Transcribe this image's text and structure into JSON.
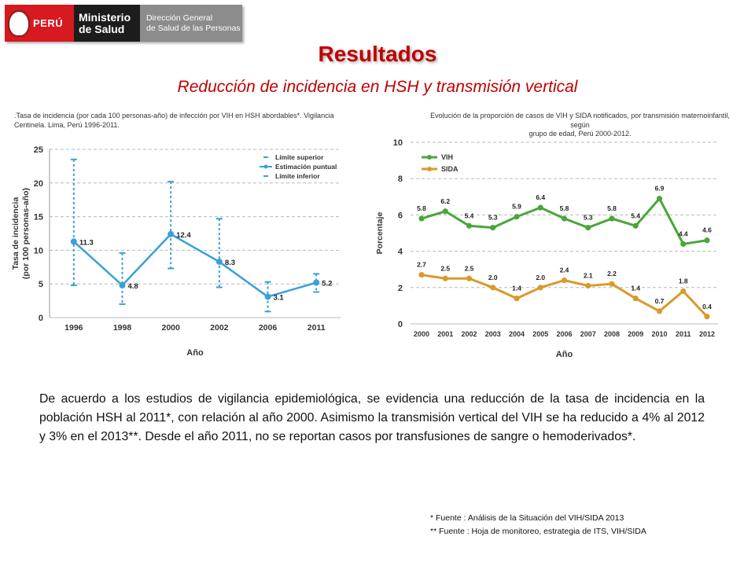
{
  "header": {
    "logo_country": "PERÚ",
    "logo_ministry_1": "Ministerio",
    "logo_ministry_2": "de Salud",
    "logo_dir_1": "Dirección General",
    "logo_dir_2": "de Salud de las Personas"
  },
  "slide": {
    "title": "Resultados",
    "subtitle": "Reducción de incidencia en HSH y transmisión vertical",
    "paragraph": "De acuerdo a los estudios de vigilancia epidemiológica, se evidencia una reducción de la tasa de incidencia en la población HSH al 2011*, con relación al año 2000. Asimismo la transmisión vertical del VIH se ha reducido a 4% al 2012 y 3% en el 2013**. Desde el año 2011, no se reportan casos por transfusiones de sangre o hemoderivados*.",
    "footnote_1": "*   Fuente : Análisis de la Situación del VIH/SIDA 2013",
    "footnote_2": "** Fuente : Hoja de monitoreo, estrategia de ITS, VIH/SIDA"
  },
  "chart_data": [
    {
      "type": "line",
      "title_line1": ".Tasa de incidencia (por cada 100 personas-año) de infección por VIH en HSH abordables*. Vigilancia",
      "title_line2": "Centinela. Lima, Perú 1996-2011.",
      "xlabel": "Año",
      "ylabel_line1": "Tasa de incidencia",
      "ylabel_line2": "(por 100 personas-año)",
      "categories": [
        "1996",
        "1998",
        "2000",
        "2002",
        "2006",
        "2011"
      ],
      "ylim": [
        0,
        25
      ],
      "yticks": [
        0,
        5,
        10,
        15,
        20,
        25
      ],
      "grid": true,
      "legend_position": "top-right",
      "legend": [
        "Límite superior",
        "Estimación puntual",
        "Límite inferior"
      ],
      "series": [
        {
          "name": "Estimación puntual",
          "values": [
            11.3,
            4.8,
            12.4,
            8.3,
            3.1,
            5.2
          ],
          "labels": [
            "11.3",
            "4.8",
            "12.4",
            "8.3",
            "3.1",
            "5.2"
          ]
        },
        {
          "name": "Límite superior",
          "values": [
            23.5,
            9.6,
            20.2,
            14.7,
            5.3,
            6.5
          ]
        },
        {
          "name": "Límite inferior",
          "values": [
            4.8,
            2.0,
            7.3,
            4.5,
            0.9,
            3.8
          ]
        }
      ],
      "color": "#3aa0d8"
    },
    {
      "type": "line",
      "title_line1": "Evolución de la proporción de casos de VIH y SIDA notificados, por transmisión maternoinfantil, según",
      "title_line2": "grupo de edad, Perú 2000-2012.",
      "xlabel": "Año",
      "ylabel": "Porcentaje",
      "categories": [
        "2000",
        "2001",
        "2002",
        "2003",
        "2004",
        "2005",
        "2006",
        "2007",
        "2008",
        "2009",
        "2010",
        "2011",
        "2012"
      ],
      "ylim": [
        0,
        10
      ],
      "yticks": [
        0,
        2,
        4,
        6,
        8,
        10
      ],
      "grid": true,
      "legend_position": "top-left",
      "series": [
        {
          "name": "VIH",
          "values": [
            5.8,
            6.2,
            5.4,
            5.3,
            5.9,
            6.4,
            5.8,
            5.3,
            5.8,
            5.4,
            6.9,
            4.4,
            4.6
          ],
          "labels": [
            "5.8",
            "6.2",
            "5.4",
            "5.3",
            "5.9",
            "6.4",
            "5.8",
            "5.3",
            "5.8",
            "5.4",
            "6.9",
            "4.4",
            "4.6"
          ],
          "color": "#4aa63a"
        },
        {
          "name": "SIDA",
          "values": [
            2.7,
            2.5,
            2.5,
            2.0,
            1.4,
            2.0,
            2.4,
            2.1,
            2.2,
            1.4,
            0.7,
            1.8,
            0.4
          ],
          "labels": [
            "2.7",
            "2.5",
            "2.5",
            "2.0",
            "1.4",
            "2.0",
            "2.4",
            "2.1",
            "2.2",
            "1.4",
            "0.7",
            "1.8",
            "0.4"
          ],
          "color": "#d99a2b"
        }
      ]
    }
  ]
}
